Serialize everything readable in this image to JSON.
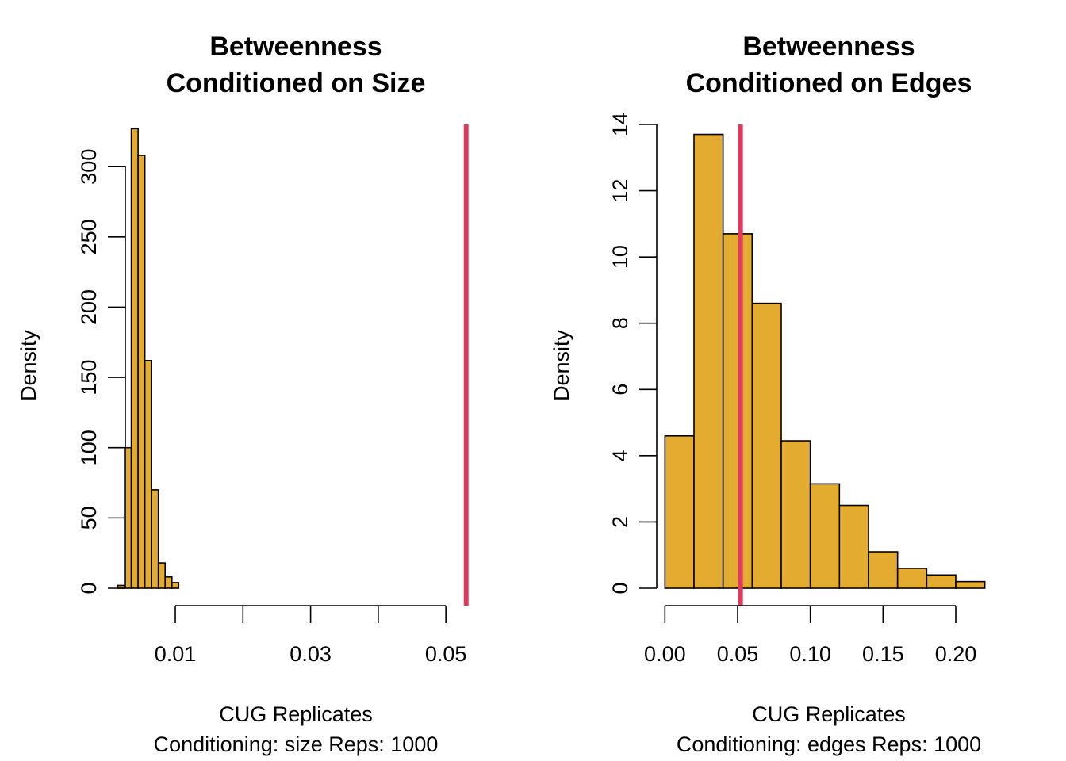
{
  "chart_data": [
    {
      "type": "bar",
      "title_lines": [
        "Betweenness",
        "Conditioned on Size"
      ],
      "xlabel_lines": [
        "CUG Replicates",
        "Conditioning: size Reps: 1000"
      ],
      "ylabel": "Density",
      "xlim": [
        0.0005,
        0.0535
      ],
      "ylim": [
        0,
        330
      ],
      "xticks": [
        0.01,
        0.02,
        0.03,
        0.04,
        0.05
      ],
      "xtick_labels": [
        "0.01",
        "",
        "0.03",
        "",
        "0.05"
      ],
      "yticks": [
        0,
        50,
        100,
        150,
        200,
        250,
        300
      ],
      "ytick_labels": [
        "0",
        "50",
        "100",
        "150",
        "200",
        "250",
        "300"
      ],
      "bins": [
        {
          "x0": 0.0015,
          "x1": 0.0025,
          "density": 2
        },
        {
          "x0": 0.0025,
          "x1": 0.0035,
          "density": 100
        },
        {
          "x0": 0.0035,
          "x1": 0.0045,
          "density": 327
        },
        {
          "x0": 0.0045,
          "x1": 0.0055,
          "density": 308
        },
        {
          "x0": 0.0055,
          "x1": 0.0065,
          "density": 162
        },
        {
          "x0": 0.0065,
          "x1": 0.0075,
          "density": 70
        },
        {
          "x0": 0.0075,
          "x1": 0.0085,
          "density": 18
        },
        {
          "x0": 0.0085,
          "x1": 0.0095,
          "density": 8
        },
        {
          "x0": 0.0095,
          "x1": 0.0105,
          "density": 4
        }
      ],
      "observed": 0.053,
      "colors": {
        "bar": "#E3AB2F",
        "observed": "#DF3B5F"
      }
    },
    {
      "type": "bar",
      "title_lines": [
        "Betweenness",
        "Conditioned on Edges"
      ],
      "xlabel_lines": [
        "CUG Replicates",
        "Conditioning: edges Reps: 1000"
      ],
      "ylabel": "Density",
      "xlim": [
        -0.01,
        0.23
      ],
      "ylim": [
        0,
        14
      ],
      "xticks": [
        0.0,
        0.05,
        0.1,
        0.15,
        0.2
      ],
      "xtick_labels": [
        "0.00",
        "0.05",
        "0.10",
        "0.15",
        "0.20"
      ],
      "yticks": [
        0,
        2,
        4,
        6,
        8,
        10,
        12,
        14
      ],
      "ytick_labels": [
        "0",
        "2",
        "4",
        "6",
        "8",
        "10",
        "12",
        "14"
      ],
      "bins": [
        {
          "x0": 0.0,
          "x1": 0.02,
          "density": 4.6
        },
        {
          "x0": 0.02,
          "x1": 0.04,
          "density": 13.7
        },
        {
          "x0": 0.04,
          "x1": 0.06,
          "density": 10.7
        },
        {
          "x0": 0.06,
          "x1": 0.08,
          "density": 8.6
        },
        {
          "x0": 0.08,
          "x1": 0.1,
          "density": 4.45
        },
        {
          "x0": 0.1,
          "x1": 0.12,
          "density": 3.15
        },
        {
          "x0": 0.12,
          "x1": 0.14,
          "density": 2.5
        },
        {
          "x0": 0.14,
          "x1": 0.16,
          "density": 1.1
        },
        {
          "x0": 0.16,
          "x1": 0.18,
          "density": 0.6
        },
        {
          "x0": 0.18,
          "x1": 0.2,
          "density": 0.4
        },
        {
          "x0": 0.2,
          "x1": 0.22,
          "density": 0.2
        }
      ],
      "observed": 0.052,
      "colors": {
        "bar": "#E3AB2F",
        "observed": "#DF3B5F"
      }
    }
  ]
}
